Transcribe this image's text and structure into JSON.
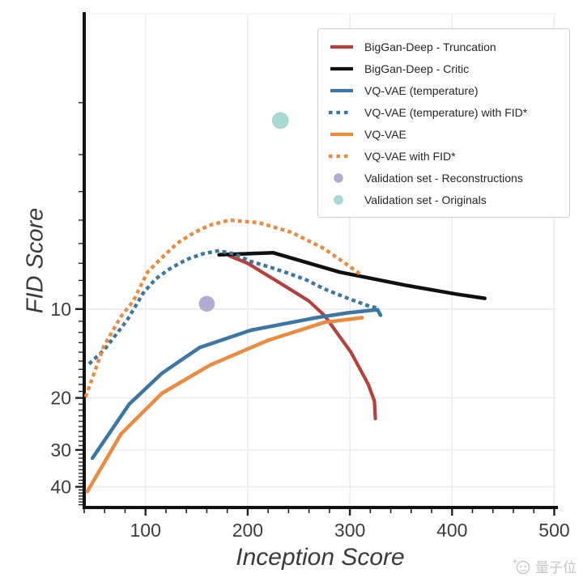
{
  "page": {
    "background": "#ffffff"
  },
  "axes": {
    "xlabel": "Inception Score",
    "ylabel": "FID Score",
    "tick_color": "#3d3d3d",
    "spine_color": "#111111",
    "grid_color": "#ebebeb"
  },
  "chart_data": {
    "type": "line",
    "title": "",
    "xlabel": "Inception Score",
    "ylabel": "FID Score",
    "xlim": [
      40,
      502
    ],
    "ylim": [
      1,
      47
    ],
    "yscale": "log",
    "y_inverted": true,
    "grid": true,
    "legend_position": "upper right",
    "xticks": [
      100,
      200,
      300,
      400,
      500
    ],
    "yticks": [
      10,
      20,
      30,
      40
    ],
    "x_minor_step": 20,
    "series": [
      {
        "name": "BigGan-Deep - Truncation",
        "color": "#b5413c",
        "style": "solid",
        "width": 4.2,
        "points": [
          [
            182,
            6.6
          ],
          [
            200,
            7.0
          ],
          [
            235,
            8.3
          ],
          [
            260,
            9.4
          ],
          [
            275,
            10.5
          ],
          [
            301,
            14.0
          ],
          [
            318,
            18.0
          ],
          [
            324,
            20.5
          ],
          [
            325,
            23.5
          ]
        ]
      },
      {
        "name": "BigGan-Deep - Critic",
        "color": "#101010",
        "style": "solid",
        "width": 4.5,
        "points": [
          [
            172,
            6.55
          ],
          [
            225,
            6.45
          ],
          [
            290,
            7.5
          ],
          [
            354,
            8.3
          ],
          [
            404,
            8.9
          ],
          [
            432,
            9.2
          ]
        ]
      },
      {
        "name": "VQ-VAE (temperature)",
        "color": "#3b76a4",
        "style": "solid",
        "width": 4.5,
        "points": [
          [
            48,
            32
          ],
          [
            84,
            21
          ],
          [
            116,
            16.5
          ],
          [
            153,
            13.5
          ],
          [
            203,
            11.8
          ],
          [
            267,
            10.7
          ],
          [
            298,
            10.3
          ],
          [
            327,
            10.05
          ],
          [
            330,
            10.5
          ]
        ]
      },
      {
        "name": "VQ-VAE (temperature) with FID*",
        "color": "#3b76a4",
        "style": "dotted",
        "width": 4.4,
        "points": [
          [
            46,
            15.2
          ],
          [
            60,
            13.7
          ],
          [
            82,
            10.9
          ],
          [
            98,
            8.8
          ],
          [
            110,
            7.9
          ],
          [
            124,
            7.3
          ],
          [
            140,
            6.8
          ],
          [
            156,
            6.5
          ],
          [
            171,
            6.35
          ],
          [
            187,
            6.5
          ],
          [
            203,
            6.9
          ],
          [
            221,
            7.2
          ],
          [
            239,
            7.55
          ],
          [
            257,
            7.95
          ],
          [
            275,
            8.55
          ],
          [
            298,
            9.2
          ],
          [
            318,
            9.75
          ],
          [
            328,
            9.95
          ]
        ]
      },
      {
        "name": "VQ-VAE",
        "color": "#ec8b3e",
        "style": "solid",
        "width": 4.5,
        "points": [
          [
            43,
            41.5
          ],
          [
            76,
            26.5
          ],
          [
            116,
            19.3
          ],
          [
            163,
            15.5
          ],
          [
            219,
            12.8
          ],
          [
            275,
            11.1
          ],
          [
            312,
            10.7
          ]
        ]
      },
      {
        "name": "VQ-VAE with FID*",
        "color": "#ec8b3e",
        "style": "dotted",
        "width": 4.4,
        "points": [
          [
            42,
            19.6
          ],
          [
            59,
            13.4
          ],
          [
            76,
            10.6
          ],
          [
            88,
            9.4
          ],
          [
            102,
            7.5
          ],
          [
            116,
            6.7
          ],
          [
            132,
            5.95
          ],
          [
            148,
            5.5
          ],
          [
            163,
            5.2
          ],
          [
            182,
            5.0
          ],
          [
            211,
            5.1
          ],
          [
            243,
            5.5
          ],
          [
            275,
            6.25
          ],
          [
            298,
            7.1
          ],
          [
            312,
            7.7
          ]
        ]
      },
      {
        "name": "Validation set - Reconstructions",
        "color": "#b2abd4",
        "style": "point",
        "size": 19,
        "points": [
          [
            160,
            9.6
          ]
        ]
      },
      {
        "name": "Validation set - Originals",
        "color": "#a5dbd6",
        "style": "point",
        "size": 20,
        "points": [
          [
            232,
            2.3
          ]
        ]
      }
    ]
  },
  "watermark": {
    "text": "量子位"
  }
}
